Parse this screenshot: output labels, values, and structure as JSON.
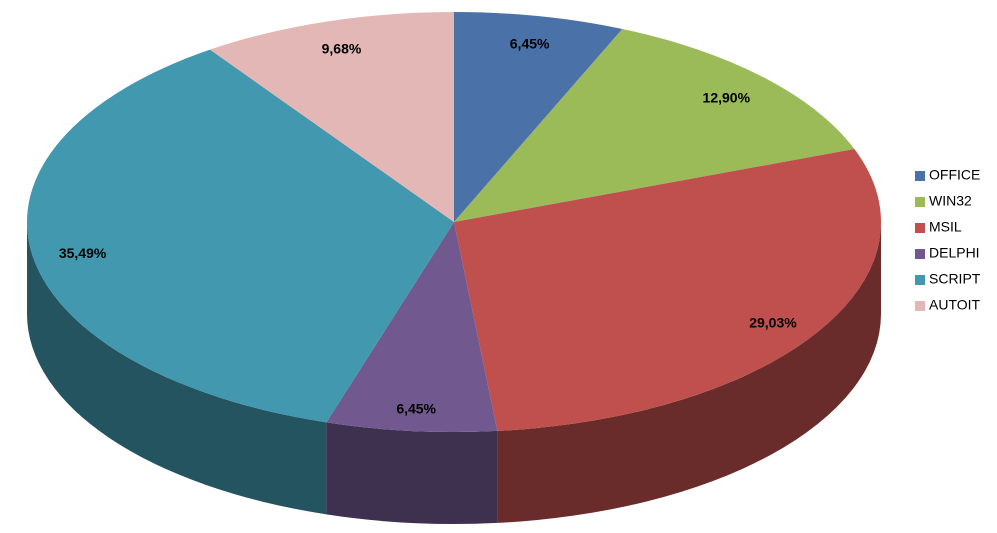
{
  "chart_data": {
    "type": "pie3d",
    "categories": [
      "OFFICE",
      "WIN32",
      "MSIL",
      "DELPHI",
      "SCRIPT",
      "AUTOIT"
    ],
    "values": [
      6.45,
      12.9,
      29.03,
      6.45,
      35.49,
      9.68
    ],
    "value_labels": [
      "6,45%",
      "12,90%",
      "29,03%",
      "6,45%",
      "35,49%",
      "9,68%"
    ],
    "colors": [
      "#4a72a8",
      "#9bbb59",
      "#c0504d",
      "#71588f",
      "#4198af",
      "#e3b7b6"
    ],
    "legend": "right"
  }
}
